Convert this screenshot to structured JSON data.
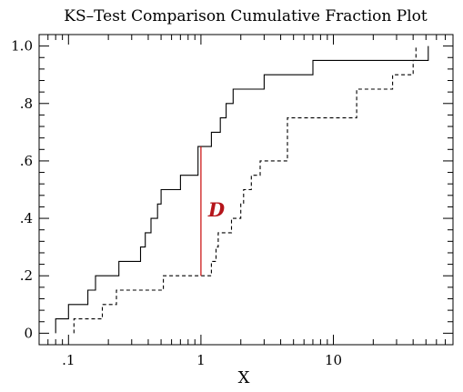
{
  "chart_data": {
    "type": "line",
    "title": "KS–Test Comparison Cumulative Fraction Plot",
    "xlabel": "X",
    "ylabel": "",
    "xscale": "log",
    "xlim": [
      0.06,
      80
    ],
    "ylim": [
      -0.04,
      1.04
    ],
    "x_tick_labels": [
      {
        "value": 0.1,
        "label": ".1"
      },
      {
        "value": 1,
        "label": "1"
      },
      {
        "value": 10,
        "label": "10"
      }
    ],
    "y_tick_labels": [
      {
        "value": 0,
        "label": "0"
      },
      {
        "value": 0.2,
        "label": ".2"
      },
      {
        "value": 0.4,
        "label": ".4"
      },
      {
        "value": 0.6,
        "label": ".6"
      },
      {
        "value": 0.8,
        "label": ".8"
      },
      {
        "value": 1.0,
        "label": "1.0"
      }
    ],
    "series": [
      {
        "style": "solid",
        "color": "#000000",
        "steps": [
          [
            0.08,
            0.0
          ],
          [
            0.08,
            0.05
          ],
          [
            0.1,
            0.1
          ],
          [
            0.14,
            0.15
          ],
          [
            0.16,
            0.2
          ],
          [
            0.24,
            0.25
          ],
          [
            0.35,
            0.3
          ],
          [
            0.38,
            0.35
          ],
          [
            0.42,
            0.4
          ],
          [
            0.47,
            0.45
          ],
          [
            0.5,
            0.5
          ],
          [
            0.7,
            0.55
          ],
          [
            0.95,
            0.65
          ],
          [
            1.1,
            0.65
          ],
          [
            1.2,
            0.7
          ],
          [
            1.4,
            0.75
          ],
          [
            1.55,
            0.8
          ],
          [
            1.75,
            0.85
          ],
          [
            2.6,
            0.85
          ],
          [
            3.0,
            0.9
          ],
          [
            7.0,
            0.95
          ],
          [
            52,
            0.95
          ],
          [
            52,
            1.0
          ]
        ]
      },
      {
        "style": "dashed",
        "color": "#000000",
        "steps": [
          [
            0.11,
            0.0
          ],
          [
            0.11,
            0.05
          ],
          [
            0.18,
            0.1
          ],
          [
            0.23,
            0.15
          ],
          [
            0.5,
            0.15
          ],
          [
            0.52,
            0.2
          ],
          [
            1.1,
            0.2
          ],
          [
            1.2,
            0.25
          ],
          [
            1.3,
            0.3
          ],
          [
            1.35,
            0.35
          ],
          [
            1.7,
            0.4
          ],
          [
            2.0,
            0.45
          ],
          [
            2.1,
            0.5
          ],
          [
            2.4,
            0.55
          ],
          [
            2.8,
            0.6
          ],
          [
            3.8,
            0.6
          ],
          [
            4.5,
            0.75
          ],
          [
            14,
            0.75
          ],
          [
            15,
            0.85
          ],
          [
            27,
            0.85
          ],
          [
            28,
            0.9
          ],
          [
            38,
            0.9
          ],
          [
            40,
            0.95
          ],
          [
            42,
            1.0
          ]
        ]
      }
    ],
    "annotation": {
      "label": "D",
      "x": 1.0,
      "y_low": 0.2,
      "y_high": 0.65,
      "color": "#cc1a1a"
    }
  }
}
